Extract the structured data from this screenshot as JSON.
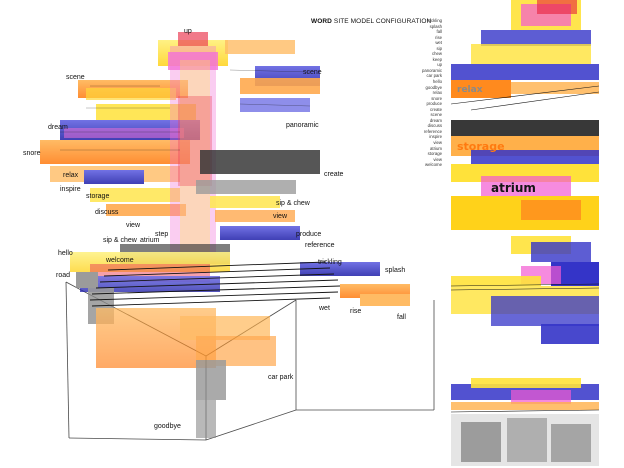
{
  "title_bold": "WORD",
  "title_rest": " SITE MODEL CONFIGURATION",
  "legend_words": [
    "trickling",
    "splash",
    "fall",
    "rise",
    "wet",
    "sip",
    "chew",
    "keep",
    "up",
    "panoramic",
    "car park",
    "hello",
    "goodbye",
    "relax",
    "snore",
    "produce",
    "create",
    "scene",
    "dream",
    "discuss",
    "reference",
    "inspire",
    "view",
    "atrium",
    "storage",
    "view",
    "welcome"
  ],
  "model_labels": {
    "up": "up",
    "scene_left": "scene",
    "scene_right": "scene",
    "dream": "dream",
    "panoramic": "panoramic",
    "snore": "snore",
    "create": "create",
    "relax": "relax",
    "inspire": "inspire",
    "storage": "storage",
    "sip_chew_upper": "sip & chew",
    "discuss": "discuss",
    "view_right": "view",
    "view_left": "view",
    "step": "step",
    "produce": "produce",
    "sip_chew_lower": "sip & chew",
    "atrium": "atrium",
    "reference": "reference",
    "hello": "hello",
    "welcome": "welcome",
    "trickling": "trickling",
    "splash": "splash",
    "road": "road",
    "wet": "wet",
    "rise": "rise",
    "fall": "fall",
    "car_park": "car park",
    "goodbye": "goodbye"
  },
  "thumbnails": [
    {
      "embedded_words": [
        "relax"
      ]
    },
    {
      "embedded_words": [
        "storage",
        "atrium"
      ]
    },
    {
      "embedded_words": []
    },
    {
      "embedded_words": []
    }
  ],
  "colors": {
    "orange": "#ff8a1e",
    "yellow": "#ffe23a",
    "blue": "#3434c8",
    "red": "#e8203a",
    "pink": "#f25ad2",
    "grey": "#8a8a8a",
    "black": "#151515"
  }
}
